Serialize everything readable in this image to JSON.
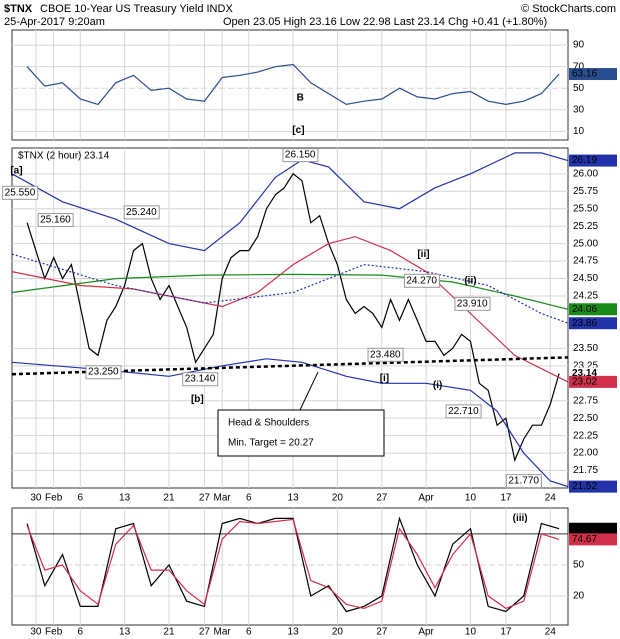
{
  "header": {
    "symbol": "$TNX",
    "name": "CBOE 10-Year US Treasury Yield INDX",
    "date": "25-Apr-2017 9:20am",
    "quote": "Open 23.05 High 23.16 Low 22.98 Last 23.14 Chg +0.41 (+1.80%)",
    "copyright": "© StockCharts.com"
  },
  "chart_data": [
    {
      "type": "line",
      "ylim": [
        2,
        104
      ],
      "yticks": [
        10,
        30,
        50,
        70,
        90
      ],
      "grid": true,
      "series": [
        {
          "color": "#2a4d8f",
          "x": [
            0,
            2,
            4,
            6,
            8,
            10,
            12,
            14,
            16,
            18,
            20,
            22,
            24,
            26,
            28,
            30,
            32,
            34,
            36,
            38,
            40,
            42,
            44,
            46,
            48,
            50,
            52,
            54,
            56,
            58,
            60
          ],
          "values": [
            70,
            52,
            55,
            40,
            35,
            55,
            62,
            48,
            50,
            40,
            38,
            60,
            62,
            65,
            70,
            72,
            55,
            45,
            35,
            38,
            40,
            50,
            42,
            40,
            45,
            47,
            38,
            35,
            38,
            45,
            63.16
          ]
        }
      ],
      "last_values": [
        {
          "value": 63.16,
          "color": "#2a4d8f"
        }
      ],
      "annotations": [
        {
          "text": "B",
          "x": 30.8,
          "y": 41,
          "color": "#2222cc"
        },
        {
          "text": "[c]",
          "x": 30.6,
          "y": 11,
          "color": "#cc0000"
        }
      ]
    },
    {
      "type": "line",
      "legend_text": "$TNX (2 hour) 23.14",
      "xlim": [
        -1.7,
        61
      ],
      "ylim": [
        21.5,
        26.37
      ],
      "grid": true,
      "xticks": [
        {
          "value": 1,
          "label": "30"
        },
        {
          "value": 3,
          "label": "Feb"
        },
        {
          "value": 6,
          "label": "6"
        },
        {
          "value": 11,
          "label": "13"
        },
        {
          "value": 16,
          "label": "21"
        },
        {
          "value": 20,
          "label": "27"
        },
        {
          "value": 22,
          "label": "Mar"
        },
        {
          "value": 25,
          "label": "6"
        },
        {
          "value": 30,
          "label": "13"
        },
        {
          "value": 35,
          "label": "20"
        },
        {
          "value": 40,
          "label": "27"
        },
        {
          "value": 45,
          "label": "Apr"
        },
        {
          "value": 50,
          "label": "10"
        },
        {
          "value": 54,
          "label": "17"
        },
        {
          "value": 59,
          "label": "24"
        }
      ],
      "yticks": [
        {
          "value": 21.75,
          "label": "21.75"
        },
        {
          "value": 22,
          "label": "22.00"
        },
        {
          "value": 22.25,
          "label": "22.25"
        },
        {
          "value": 22.5,
          "label": "22.50"
        },
        {
          "value": 22.75,
          "label": "22.75"
        },
        {
          "value": 23.25,
          "label": "23.25"
        },
        {
          "value": 23.5,
          "label": "23.50"
        },
        {
          "value": 24.25,
          "label": "24.25"
        },
        {
          "value": 24.5,
          "label": "24.50"
        },
        {
          "value": 24.75,
          "label": "24.75"
        },
        {
          "value": 25,
          "label": "25.00"
        },
        {
          "value": 25.25,
          "label": "25.25"
        },
        {
          "value": 25.5,
          "label": "25.50"
        },
        {
          "value": 25.75,
          "label": "25.75"
        },
        {
          "value": 26,
          "label": "26.00"
        }
      ],
      "series": [
        {
          "color": "#000000",
          "values": [
            25.3,
            24.9,
            24.5,
            24.8,
            24.5,
            24.7,
            24.1,
            23.5,
            23.4,
            23.9,
            24.1,
            24.4,
            24.9,
            25.0,
            24.5,
            24.2,
            24.4,
            24.1,
            23.8,
            23.3,
            23.5,
            23.7,
            24.5,
            24.8,
            24.9,
            24.9,
            25.1,
            25.5,
            25.7,
            25.8,
            26.0,
            25.9,
            25.3,
            25.4,
            25.0,
            24.7,
            24.2,
            24.0,
            24.1,
            24.0,
            23.8,
            24.2,
            23.9,
            24.2,
            23.9,
            23.6,
            23.6,
            23.4,
            23.5,
            23.7,
            23.6,
            23.0,
            22.9,
            22.4,
            22.5,
            21.9,
            22.2,
            22.4,
            22.4,
            22.7,
            23.14
          ]
        },
        {
          "color": "#2233aa",
          "x": [
            -1.7,
            4,
            10,
            16,
            20,
            24,
            28,
            31,
            34,
            38,
            42,
            46,
            50,
            55,
            58,
            61
          ],
          "values": [
            26.0,
            25.6,
            25.35,
            25.0,
            24.9,
            25.3,
            25.95,
            26.2,
            26.1,
            25.6,
            25.5,
            25.8,
            26.0,
            26.3,
            26.3,
            26.19
          ]
        },
        {
          "color": "#2233aa",
          "x": [
            -1.7,
            8,
            16,
            22,
            27,
            31,
            36,
            40,
            45,
            50,
            53,
            56,
            59,
            61
          ],
          "values": [
            23.3,
            23.2,
            23.1,
            23.25,
            23.35,
            23.3,
            23.1,
            23.0,
            23.0,
            22.9,
            22.6,
            22.0,
            21.6,
            21.52
          ]
        },
        {
          "color": "#d0304a",
          "x": [
            -1.7,
            6,
            12,
            18,
            22,
            26,
            30,
            34,
            37,
            41,
            45,
            50,
            55,
            61
          ],
          "values": [
            24.6,
            24.4,
            24.35,
            24.2,
            24.1,
            24.3,
            24.7,
            25.0,
            25.1,
            24.9,
            24.6,
            24.0,
            23.4,
            23.02
          ]
        },
        {
          "color": "#1a8a1a",
          "x": [
            -1.7,
            10,
            20,
            30,
            40,
            48,
            55,
            61
          ],
          "values": [
            24.3,
            24.5,
            24.55,
            24.56,
            24.55,
            24.45,
            24.25,
            24.06
          ]
        },
        {
          "color": "#2233aa",
          "dashed": true,
          "x": [
            -1.7,
            10,
            20,
            30,
            38,
            45,
            52,
            58,
            61
          ],
          "values": [
            24.85,
            24.4,
            24.15,
            24.3,
            24.7,
            24.6,
            24.4,
            24.0,
            23.86
          ]
        },
        {
          "color": "#000000",
          "dashed": true,
          "width": 2.5,
          "x": [
            -1.7,
            61
          ],
          "values": [
            23.13,
            23.37
          ]
        }
      ],
      "last_values": [
        {
          "value": 26.19,
          "color": "#2233aa"
        },
        {
          "value": 24.06,
          "color": "#1a8a1a"
        },
        {
          "value": 23.86,
          "color": "#2233aa"
        },
        {
          "value": 23.14,
          "color": "#000000"
        },
        {
          "value": 23.02,
          "color": "#d0304a"
        },
        {
          "value": 21.52,
          "color": "#2233aa"
        }
      ],
      "point_labels": [
        {
          "text": "25.550",
          "x": -0.8,
          "y": 25.73
        },
        {
          "text": "25.160",
          "x": 3.2,
          "y": 25.34
        },
        {
          "text": "25.240",
          "x": 12.9,
          "y": 25.45
        },
        {
          "text": "23.250",
          "x": 8.6,
          "y": 23.16
        },
        {
          "text": "23.140",
          "x": 19.5,
          "y": 23.06
        },
        {
          "text": "26.150",
          "x": 30.8,
          "y": 26.27
        },
        {
          "text": "23.480",
          "x": 40.4,
          "y": 23.41
        },
        {
          "text": "24.270",
          "x": 44.5,
          "y": 24.47
        },
        {
          "text": "23.910",
          "x": 50.2,
          "y": 24.14
        },
        {
          "text": "22.710",
          "x": 49.2,
          "y": 22.6
        },
        {
          "text": "21.770",
          "x": 56,
          "y": 21.6
        }
      ],
      "annotations": [
        {
          "text": "[a]",
          "x": -1.2,
          "y": 26.04,
          "color": "#cc0000"
        },
        {
          "text": "[b]",
          "x": 19.2,
          "y": 22.77,
          "color": "#cc0000"
        },
        {
          "text": "[ii]",
          "x": 44.7,
          "y": 24.85,
          "color": "#cc0000"
        },
        {
          "text": "[i]",
          "x": 40.3,
          "y": 23.07,
          "color": "#cc0000"
        },
        {
          "text": "(i)",
          "x": 46.3,
          "y": 22.97,
          "color": "#1a8a1a"
        },
        {
          "text": "(ii)",
          "x": 50,
          "y": 24.47,
          "color": "#1a8a1a"
        }
      ],
      "callout": [
        "Head & Shoulders",
        "Min. Target = 20.27"
      ]
    },
    {
      "type": "line",
      "ylim": [
        -8,
        105
      ],
      "yticks": [
        20,
        50
      ],
      "upper_band": 80,
      "grid": true,
      "series": [
        {
          "color": "#000000",
          "x": [
            0,
            2,
            4,
            6,
            8,
            10,
            12,
            14,
            16,
            18,
            20,
            22,
            24,
            26,
            28,
            30,
            32,
            34,
            36,
            38,
            40,
            42,
            44,
            46,
            48,
            50,
            52,
            54,
            56,
            58,
            60
          ],
          "values": [
            90,
            30,
            60,
            10,
            10,
            85,
            90,
            30,
            50,
            15,
            10,
            90,
            95,
            90,
            95,
            95,
            20,
            30,
            5,
            10,
            20,
            95,
            50,
            20,
            70,
            85,
            10,
            5,
            20,
            90,
            84.96
          ]
        },
        {
          "color": "#d0304a",
          "x": [
            0,
            2,
            4,
            6,
            8,
            10,
            12,
            14,
            16,
            18,
            20,
            22,
            24,
            26,
            28,
            30,
            32,
            34,
            36,
            38,
            40,
            42,
            44,
            46,
            48,
            50,
            52,
            54,
            56,
            58,
            60
          ],
          "values": [
            88,
            45,
            50,
            25,
            12,
            70,
            88,
            45,
            45,
            25,
            12,
            75,
            92,
            90,
            92,
            94,
            35,
            28,
            12,
            8,
            15,
            85,
            60,
            28,
            60,
            80,
            20,
            8,
            15,
            80,
            74.67
          ]
        }
      ],
      "last_values": [
        {
          "value": 84.96,
          "color": "#000000"
        },
        {
          "value": 74.67,
          "color": "#d0304a"
        }
      ],
      "annotations": [
        {
          "text": "(iii)",
          "x": 55.6,
          "y": 95,
          "color": "#1a8a1a"
        }
      ]
    }
  ]
}
